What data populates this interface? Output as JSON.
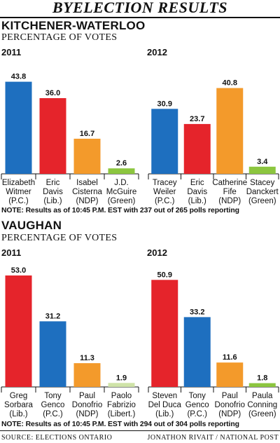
{
  "title": "BYELECTION RESULTS",
  "sections": [
    {
      "region": "KITCHENER-WATERLOO",
      "subtitle": "PERCENTAGE OF VOTES",
      "note": "NOTE: Results as of 10:45 P.M. EST with 237 out of 265 polls reporting"
    },
    {
      "region": "VAUGHAN",
      "subtitle": "PERCENTAGE OF VOTES",
      "note": "NOTE: Results as of 10:45 P.M. EST with 294 out of 304 polls reporting"
    }
  ],
  "footer": {
    "source": "SOURCE: ELECTIONS ONTARIO",
    "credit": "JONATHON RIVAIT / NATIONAL POST"
  },
  "colors": {
    "pc": "#1e6fbf",
    "lib": "#e5242b",
    "ndp": "#f39a2b",
    "green": "#8cc63f",
    "libert": "#cfe3a8"
  },
  "chart_data": [
    {
      "type": "bar",
      "region": "KITCHENER-WATERLOO",
      "title": "2011",
      "ylabel": "PERCENTAGE OF VOTES",
      "categories": [
        [
          "Elizabeth",
          "Witmer",
          "(P.C.)"
        ],
        [
          "Eric",
          "Davis",
          "(Lib.)"
        ],
        [
          "Isabel",
          "Cisterna",
          "(NDP)"
        ],
        [
          "J.D.",
          "McGuire",
          "(Green)"
        ]
      ],
      "values": [
        43.8,
        36.0,
        16.7,
        2.6
      ],
      "value_labels": [
        "43.8",
        "36.0",
        "16.7",
        "2.6"
      ],
      "colors": [
        "#1e6fbf",
        "#e5242b",
        "#f39a2b",
        "#8cc63f"
      ],
      "grid": false
    },
    {
      "type": "bar",
      "region": "KITCHENER-WATERLOO",
      "title": "2012",
      "ylabel": "PERCENTAGE OF VOTES",
      "categories": [
        [
          "Tracey",
          "Weiler",
          "(P.C.)"
        ],
        [
          "Eric",
          "Davis",
          "(Lib.)"
        ],
        [
          "Catherine",
          "Fife",
          "(NDP)"
        ],
        [
          "Stacey",
          "Danckert",
          "(Green)"
        ]
      ],
      "values": [
        30.9,
        23.7,
        40.8,
        3.4
      ],
      "value_labels": [
        "30.9",
        "23.7",
        "40.8",
        "3.4"
      ],
      "colors": [
        "#1e6fbf",
        "#e5242b",
        "#f39a2b",
        "#8cc63f"
      ],
      "grid": false
    },
    {
      "type": "bar",
      "region": "VAUGHAN",
      "title": "2011",
      "ylabel": "PERCENTAGE OF VOTES",
      "categories": [
        [
          "Greg",
          "Sorbara",
          "(Lib.)"
        ],
        [
          "Tony",
          "Genco",
          "(P.C.)"
        ],
        [
          "Paul",
          "Donofrio",
          "(NDP)"
        ],
        [
          "Paolo",
          "Fabrizio",
          "(Libert.)"
        ]
      ],
      "values": [
        53.0,
        31.2,
        11.3,
        1.9
      ],
      "value_labels": [
        "53.0",
        "31.2",
        "11.3",
        "1.9"
      ],
      "colors": [
        "#e5242b",
        "#1e6fbf",
        "#f39a2b",
        "#cfe3a8"
      ],
      "grid": false
    },
    {
      "type": "bar",
      "region": "VAUGHAN",
      "title": "2012",
      "ylabel": "PERCENTAGE OF VOTES",
      "categories": [
        [
          "Steven",
          "Del Duca",
          "(Lib.)"
        ],
        [
          "Tony",
          "Genco",
          "(P.C.)"
        ],
        [
          "Paul",
          "Donofrio",
          "(NDP)"
        ],
        [
          "Paula",
          "Conning",
          "(Green)"
        ]
      ],
      "values": [
        50.9,
        33.2,
        11.6,
        1.8
      ],
      "value_labels": [
        "50.9",
        "33.2",
        "11.6",
        "1.8"
      ],
      "colors": [
        "#e5242b",
        "#1e6fbf",
        "#f39a2b",
        "#8cc63f"
      ],
      "grid": false
    }
  ]
}
